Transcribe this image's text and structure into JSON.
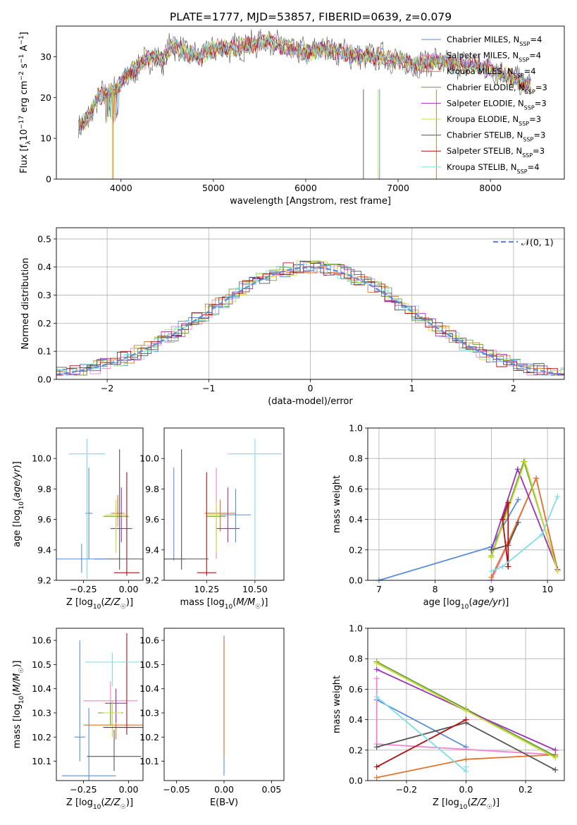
{
  "figure_title": "PLATE=1777, MJD=53857, FIBERID=0639, z=0.079",
  "models": [
    {
      "name": "Chabrier MILES",
      "nssp": "4",
      "color": "#5a8ed6"
    },
    {
      "name": "Salpeter MILES",
      "nssp": "4",
      "color": "#ef85cf"
    },
    {
      "name": "Kroupa MILES",
      "nssp": "4",
      "color": "#e3742c"
    },
    {
      "name": "Chabrier ELODIE",
      "nssp": "3",
      "color": "#6a9f3a"
    },
    {
      "name": "Salpeter ELODIE",
      "nssp": "3",
      "color": "#9b32b5"
    },
    {
      "name": "Kroupa ELODIE",
      "nssp": "3",
      "color": "#c8dc3c"
    },
    {
      "name": "Chabrier STELIB",
      "nssp": "3",
      "color": "#555555"
    },
    {
      "name": "Salpeter STELIB",
      "nssp": "3",
      "color": "#b01212"
    },
    {
      "name": "Kroupa STELIB",
      "nssp": "4",
      "color": "#7fdde6"
    }
  ],
  "chart_data": [
    {
      "id": "spectrum",
      "type": "line",
      "xlabel": "wavelength [Angstrom, rest frame]",
      "ylabel": "Flux [f_λ 10^-17 erg cm^-2 s^-1 A^-1]",
      "xlim": [
        3300,
        8800
      ],
      "ylim": [
        0,
        37.5
      ],
      "xticks": [
        4000,
        5000,
        6000,
        7000,
        8000
      ],
      "yticks": [
        0,
        10,
        20,
        30
      ],
      "legend": "top-right",
      "x": [
        3550,
        3650,
        3750,
        3850,
        3950,
        4050,
        4150,
        4250,
        4350,
        4450,
        4550,
        4700,
        4850,
        5000,
        5200,
        5400,
        5600,
        5800,
        6000,
        6200,
        6400,
        6600,
        6800,
        7000,
        7200,
        7400,
        7600,
        7800,
        8000,
        8200,
        8400
      ],
      "y": [
        13,
        15,
        20,
        21,
        22,
        25,
        27,
        29,
        30,
        29,
        33,
        31,
        30,
        32,
        32,
        33,
        34,
        32,
        31,
        32,
        31,
        30,
        30,
        29,
        28,
        29,
        28,
        28,
        27,
        25,
        23
      ]
    },
    {
      "id": "residuals",
      "type": "step",
      "xlabel": "(data-model)/error",
      "ylabel": "Normed distribution",
      "xlim": [
        -2.5,
        2.5
      ],
      "ylim": [
        0,
        0.54
      ],
      "xticks": [
        -2,
        -1,
        0,
        1,
        2
      ],
      "yticks": [
        0.0,
        0.1,
        0.2,
        0.3,
        0.4,
        0.5
      ],
      "grid": true,
      "legend_label": "𝒩(0, 1)",
      "legend": "top-right"
    },
    {
      "id": "age-vs-Z",
      "type": "errorbar",
      "xlabel": "Z [log10(Z/Z☉)]",
      "ylabel": "age [log10(age/yr)]",
      "xlim": [
        -0.4,
        0.08
      ],
      "ylim": [
        9.2,
        10.2
      ],
      "xticks": [
        -0.25,
        0.0
      ],
      "xticklabels": [
        "−0.25",
        "0.00"
      ],
      "yticks": [
        9.2,
        9.4,
        9.6,
        9.8,
        10.0
      ],
      "points": [
        {
          "x": -0.22,
          "y": 9.64,
          "xerr": 0.02,
          "yerr": [
            0.3,
            0.3
          ]
        },
        {
          "x": -0.06,
          "y": 9.64,
          "xerr": 0.04,
          "yerr": [
            0.09,
            0.09
          ]
        },
        {
          "x": -0.06,
          "y": 9.64,
          "xerr": 0.03,
          "yerr": [
            0.03,
            0.12
          ]
        },
        {
          "x": -0.07,
          "y": 9.62,
          "xerr": 0.07,
          "yerr": [
            0.15,
            0.05
          ]
        },
        {
          "x": -0.04,
          "y": 9.54,
          "xerr": 0.06,
          "yerr": [
            0.09,
            0.27
          ]
        },
        {
          "x": -0.07,
          "y": 9.63,
          "xerr": 0.06,
          "yerr": [
            0.25,
            0.1
          ]
        },
        {
          "x": -0.05,
          "y": 9.34,
          "xerr": 0.14,
          "yerr": [
            0.07,
            0.72
          ]
        },
        {
          "x": -0.01,
          "y": 9.25,
          "xerr": 0.07,
          "yerr": [
            0.02,
            0.66
          ]
        },
        {
          "x": -0.23,
          "y": 10.03,
          "xerr": 0.1,
          "yerr": [
            0.82,
            0.1
          ]
        },
        {
          "x": -0.26,
          "y": 9.34,
          "xerr": 0.14,
          "yerr": [
            0.09,
            0.1
          ]
        }
      ]
    },
    {
      "id": "age-vs-mass",
      "type": "errorbar",
      "xlabel": "mass [log10(M/M☉)]",
      "ylabel": "",
      "xlim": [
        10.03,
        10.65
      ],
      "ylim": [
        9.2,
        10.2
      ],
      "xticks": [
        10.25,
        10.5
      ],
      "xticklabels": [
        "10.25",
        "10.50"
      ],
      "yticks": [
        9.2,
        9.4,
        9.6,
        9.8,
        10.0
      ],
      "points": [
        {
          "x": 10.08,
          "y": 9.34,
          "xerr": 0.06,
          "yerr": [
            0.01,
            0.6
          ]
        },
        {
          "x": 10.3,
          "y": 9.64,
          "xerr": 0.05,
          "yerr": [
            0.3,
            0.3
          ]
        },
        {
          "x": 10.32,
          "y": 9.64,
          "xerr": 0.08,
          "yerr": [
            0.12,
            0.09
          ]
        },
        {
          "x": 10.3,
          "y": 9.62,
          "xerr": 0.05,
          "yerr": [
            0.15,
            0.05
          ]
        },
        {
          "x": 10.36,
          "y": 9.54,
          "xerr": 0.06,
          "yerr": [
            0.09,
            0.27
          ]
        },
        {
          "x": 10.3,
          "y": 9.63,
          "xerr": 0.05,
          "yerr": [
            0.25,
            0.08
          ]
        },
        {
          "x": 10.12,
          "y": 9.34,
          "xerr": 0.14,
          "yerr": [
            0.07,
            0.72
          ]
        },
        {
          "x": 10.25,
          "y": 9.25,
          "xerr": 0.05,
          "yerr": [
            0.02,
            0.66
          ]
        },
        {
          "x": 10.5,
          "y": 10.03,
          "xerr": 0.14,
          "yerr": [
            0.82,
            0.1
          ]
        },
        {
          "x": 10.4,
          "y": 9.63,
          "xerr": 0.08,
          "yerr": [
            0.18,
            0.17
          ]
        }
      ]
    },
    {
      "id": "weight-vs-age",
      "type": "line",
      "xlabel": "age [log10(age/yr)]",
      "ylabel": "mass weight",
      "xlim": [
        6.8,
        10.3
      ],
      "ylim": [
        0,
        1
      ],
      "xticks": [
        7,
        8,
        9,
        10
      ],
      "yticks": [
        0.0,
        0.2,
        0.4,
        0.6,
        0.8,
        1.0
      ],
      "grid": true,
      "series": [
        {
          "x": [
            7.0,
            9.0,
            9.48
          ],
          "y": [
            0.0,
            0.22,
            0.53
          ]
        },
        {
          "x": [
            9.0,
            9.3,
            9.8,
            10.18
          ],
          "y": [
            0.0,
            0.24,
            0.67,
            0.07
          ]
        },
        {
          "x": [
            9.0,
            9.3,
            9.8,
            10.18
          ],
          "y": [
            0.02,
            0.25,
            0.67,
            0.07
          ]
        },
        {
          "x": [
            9.0,
            9.58,
            10.18
          ],
          "y": [
            0.16,
            0.78,
            0.07
          ]
        },
        {
          "x": [
            9.0,
            9.47,
            10.18
          ],
          "y": [
            0.2,
            0.73,
            0.07
          ]
        },
        {
          "x": [
            9.0,
            9.6,
            10.18
          ],
          "y": [
            0.15,
            0.78,
            0.06
          ]
        },
        {
          "x": [
            9.0,
            9.3,
            9.48
          ],
          "y": [
            0.2,
            0.23,
            0.38
          ]
        },
        {
          "x": [
            9.3,
            9.2,
            9.3,
            9.3
          ],
          "y": [
            0.09,
            0.4,
            0.51,
            0.09
          ]
        },
        {
          "x": [
            9.0,
            9.2,
            9.9,
            10.18
          ],
          "y": [
            0.06,
            0.09,
            0.3,
            0.55
          ]
        }
      ]
    },
    {
      "id": "mass-vs-Z",
      "type": "errorbar",
      "xlabel": "Z [log10(Z/Z☉)]",
      "ylabel": "mass [log10(M/M☉)]",
      "xlim": [
        -0.4,
        0.08
      ],
      "ylim": [
        10.02,
        10.65
      ],
      "xticks": [
        -0.25,
        0.0
      ],
      "xticklabels": [
        "−0.25",
        "0.00"
      ],
      "yticks": [
        10.1,
        10.2,
        10.3,
        10.4,
        10.5,
        10.6
      ],
      "points": [
        {
          "x": -0.22,
          "y": 10.04,
          "xerr": 0.15,
          "yerr": [
            0.02,
            0.28
          ]
        },
        {
          "x": -0.1,
          "y": 10.35,
          "xerr": 0.15,
          "yerr": [
            0.1,
            0.08
          ]
        },
        {
          "x": -0.07,
          "y": 10.25,
          "xerr": 0.18,
          "yerr": [
            0.06,
            0.12
          ]
        },
        {
          "x": -0.1,
          "y": 10.3,
          "xerr": 0.07,
          "yerr": [
            0.05,
            0.04
          ]
        },
        {
          "x": -0.07,
          "y": 10.34,
          "xerr": 0.06,
          "yerr": [
            0.08,
            0.06
          ]
        },
        {
          "x": -0.09,
          "y": 10.3,
          "xerr": 0.05,
          "yerr": [
            0.1,
            0.05
          ]
        },
        {
          "x": -0.08,
          "y": 10.12,
          "xerr": 0.15,
          "yerr": [
            0.06,
            0.11
          ]
        },
        {
          "x": -0.01,
          "y": 10.24,
          "xerr": 0.13,
          "yerr": [
            0.03,
            0.39
          ]
        },
        {
          "x": -0.09,
          "y": 10.51,
          "xerr": 0.15,
          "yerr": [
            0.1,
            0.04
          ]
        },
        {
          "x": -0.27,
          "y": 10.2,
          "xerr": 0.03,
          "yerr": [
            0.1,
            0.4
          ]
        }
      ]
    },
    {
      "id": "mass-vs-EBV",
      "type": "errorbar",
      "xlabel": "E(B-V)",
      "ylabel": "",
      "xlim": [
        -0.063,
        0.063
      ],
      "ylim": [
        10.02,
        10.65
      ],
      "xticks": [
        -0.05,
        0.0,
        0.05
      ],
      "xticklabels": [
        "−0.05",
        "0.00",
        "0.05"
      ],
      "yticks": [
        10.1,
        10.2,
        10.3,
        10.4,
        10.5,
        10.6
      ],
      "points": [
        {
          "x": 0.0,
          "y": 10.3,
          "xerr": 0.0,
          "yerr": [
            0.26,
            0.32
          ]
        },
        {
          "x": 0.0,
          "y": 10.35,
          "xerr": 0.0,
          "yerr": [
            0.2,
            0.25
          ]
        },
        {
          "x": 0.0,
          "y": 10.32,
          "xerr": 0.0,
          "yerr": [
            0.2,
            0.28
          ]
        }
      ]
    },
    {
      "id": "weight-vs-Z",
      "type": "line",
      "xlabel": "Z [log10(Z/Z☉)]",
      "ylabel": "mass weight",
      "xlim": [
        -0.33,
        0.33
      ],
      "ylim": [
        0,
        1
      ],
      "xticks": [
        -0.2,
        0.0,
        0.2
      ],
      "xticklabels": [
        "−0.2",
        "0.0",
        "0.2"
      ],
      "yticks": [
        0.0,
        0.2,
        0.4,
        0.6,
        0.8,
        1.0
      ],
      "grid": true,
      "series": [
        {
          "x": [
            -0.3,
            0.0,
            0.0
          ],
          "y": [
            0.53,
            0.22,
            0.22
          ]
        },
        {
          "x": [
            -0.3,
            -0.3,
            0.3
          ],
          "y": [
            0.67,
            0.24,
            0.17
          ]
        },
        {
          "x": [
            -0.3,
            0.0,
            0.3
          ],
          "y": [
            0.02,
            0.14,
            0.17
          ]
        },
        {
          "x": [
            -0.3,
            0.0,
            0.3
          ],
          "y": [
            0.78,
            0.47,
            0.16
          ]
        },
        {
          "x": [
            -0.3,
            0.0,
            0.3
          ],
          "y": [
            0.73,
            0.46,
            0.2
          ]
        },
        {
          "x": [
            -0.3,
            0.0,
            0.3
          ],
          "y": [
            0.77,
            0.46,
            0.15
          ]
        },
        {
          "x": [
            -0.3,
            0.0,
            0.3
          ],
          "y": [
            0.22,
            0.38,
            0.07
          ]
        },
        {
          "x": [
            -0.3,
            0.0,
            0.0
          ],
          "y": [
            0.09,
            0.4,
            0.4
          ]
        },
        {
          "x": [
            -0.3,
            0.0,
            0.0
          ],
          "y": [
            0.55,
            0.06,
            0.09
          ]
        }
      ]
    }
  ]
}
